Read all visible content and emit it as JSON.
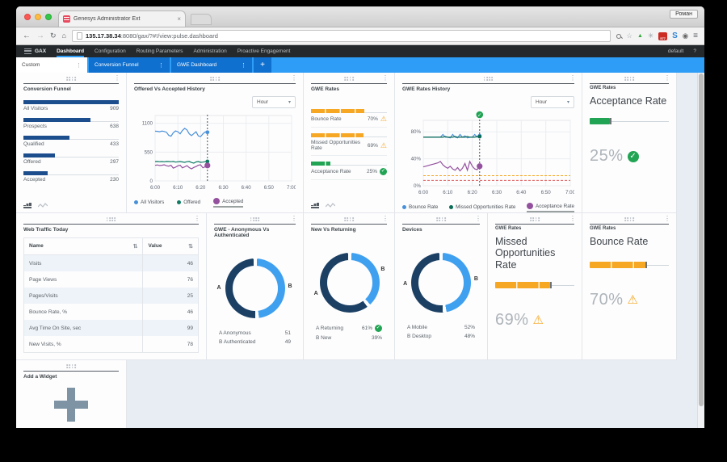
{
  "browser": {
    "tab_title": "Genesys Administrator Ext",
    "tab_close": "×",
    "user_label": "Роман",
    "url_host": "135.17.38.34",
    "url_rest": ":8080/gax/?#!/view:pulse.dashboard",
    "back": "←",
    "forward": "→",
    "reload": "↻",
    "home": "⌂",
    "star": "☆",
    "uparrow": "▲",
    "asterisk": "✳",
    "rss_badge": "577",
    "skype": "S",
    "camera": "◉",
    "menu": "≡"
  },
  "navbar": {
    "brand": "GAX",
    "items": [
      {
        "label": "Dashboard"
      },
      {
        "label": "Configuration"
      },
      {
        "label": "Routing Parameters"
      },
      {
        "label": "Administration"
      },
      {
        "label": "Proactive Engagement"
      }
    ],
    "profile": "default",
    "help": "?"
  },
  "tabbar": {
    "tabs": [
      {
        "label": "Custom",
        "menu": "⋮"
      },
      {
        "label": "Conversion Funnel",
        "menu": "⋮"
      },
      {
        "label": "GWE Dashboard",
        "menu": "⋮"
      }
    ],
    "add_label": "+"
  },
  "widgets": {
    "conversion_funnel": {
      "title": "Conversion Funnel",
      "rows": [
        {
          "label": "All Visitors",
          "value": "909",
          "pct": 100
        },
        {
          "label": "Prospects",
          "value": "638",
          "pct": 70
        },
        {
          "label": "Qualified",
          "value": "433",
          "pct": 48
        },
        {
          "label": "Offered",
          "value": "297",
          "pct": 33
        },
        {
          "label": "Accepted",
          "value": "230",
          "pct": 25
        }
      ]
    },
    "offered_history": {
      "title": "Offered Vs Accepted History",
      "dropdown": "Hour",
      "legend": [
        {
          "label": "All Visitors",
          "color": "#4a90d9"
        },
        {
          "label": "Offered",
          "color": "#0f7b63"
        },
        {
          "label": "Accepted",
          "color": "#94519e"
        }
      ],
      "chart_data": {
        "type": "line",
        "ymin": 0,
        "ymax": 1250,
        "pad_top": 6,
        "yticks": [
          {
            "v": 0,
            "label": "0"
          },
          {
            "v": 550,
            "label": "550"
          },
          {
            "v": 1100,
            "label": "1100"
          }
        ],
        "x_ticks": [
          "6:00",
          "6:10",
          "6:20",
          "6:30",
          "6:40",
          "6:50",
          "7:00"
        ],
        "cursor_minute": 23,
        "cursor_check": false,
        "thresholds": [],
        "series": [
          {
            "name": "All Visitors",
            "color": "#4a90d9",
            "dot_r": 2.4,
            "values": [
              950,
              948,
              940,
              952,
              945,
              930,
              870,
              855,
              920,
              955,
              940,
              900,
              965,
              1005,
              975,
              900,
              865,
              905,
              940,
              860,
              845,
              900,
              935,
              930
            ]
          },
          {
            "name": "Offered",
            "color": "#0f7b63",
            "dot_r": 2.4,
            "values": [
              370,
              372,
              368,
              370,
              365,
              372,
              370,
              368,
              372,
              360,
              365,
              370,
              362,
              355,
              368,
              372,
              352,
              340,
              362,
              370,
              355,
              360,
              368,
              372
            ]
          },
          {
            "name": "Accepted",
            "color": "#94519e",
            "dot_r": 3.6,
            "values": [
              298,
              305,
              295,
              300,
              308,
              290,
              282,
              300,
              245,
              262,
              288,
              300,
              250,
              268,
              292,
              255,
              232,
              258,
              275,
              300,
              308,
              252,
              270,
              296
            ]
          }
        ]
      }
    },
    "gwe_rates": {
      "title": "GWE Rates",
      "rows": [
        {
          "label": "Bounce Rate",
          "value": "70%",
          "pct": 70,
          "color": "#f6a723",
          "status": "warn"
        },
        {
          "label": "Missed Opportunities Rate",
          "value": "69%",
          "pct": 69,
          "color": "#f6a723",
          "status": "warn"
        },
        {
          "label": "Acceptance Rate",
          "value": "25%",
          "pct": 25,
          "color": "#21a453",
          "status": "ok"
        }
      ]
    },
    "gwe_rates_history": {
      "title": "GWE Rates History",
      "dropdown": "Hour",
      "legend": [
        {
          "label": "Bounce Rate",
          "color": "#4a90d9"
        },
        {
          "label": "Missed Opportunities Rate",
          "color": "#0b6b55"
        },
        {
          "label": "Acceptance Rate",
          "color": "#94519e"
        }
      ],
      "chart_data": {
        "type": "line",
        "ymin": 0,
        "ymax": 97,
        "pad_top": 12,
        "yticks": [
          {
            "v": 0,
            "label": "0%"
          },
          {
            "v": 40,
            "label": "40%"
          },
          {
            "v": 80,
            "label": "80%"
          }
        ],
        "x_ticks": [
          "6:00",
          "6:10",
          "6:20",
          "6:30",
          "6:40",
          "6:50",
          "7:00"
        ],
        "cursor_minute": 23,
        "cursor_check": true,
        "thresholds": [
          {
            "v": 15,
            "color": "#f6a723"
          },
          {
            "v": 8,
            "color": "#e05c5c"
          }
        ],
        "series": [
          {
            "name": "Bounce Rate",
            "color": "#4a90d9",
            "dot_r": 2.4,
            "values": [
              72,
              72,
              72,
              72,
              72,
              72,
              72,
              72,
              76,
              72,
              72,
              71,
              76,
              72,
              71,
              76,
              72,
              74,
              71,
              72,
              72,
              76,
              72,
              74
            ]
          },
          {
            "name": "Missed Opportunities Rate",
            "color": "#0b6b55",
            "dot_r": 2.4,
            "values": [
              72,
              72,
              72,
              72,
              72,
              72,
              72,
              72,
              72,
              73,
              72,
              72,
              72,
              73,
              72,
              72,
              72,
              72,
              73,
              72,
              72,
              72,
              73,
              73
            ]
          },
          {
            "name": "Acceptance Rate",
            "color": "#94519e",
            "dot_r": 3.6,
            "values": [
              28,
              29,
              30,
              31,
              32,
              33,
              34,
              36,
              31,
              28,
              26,
              29,
              25,
              23,
              27,
              22,
              26,
              33,
              23,
              36,
              29,
              25,
              24,
              29
            ]
          }
        ]
      }
    },
    "acceptance_kpi": {
      "category": "GWE Rates",
      "title": "Acceptance Rate",
      "value": "25%",
      "pct": 25,
      "color": "#21a453",
      "status": "ok"
    },
    "web_traffic": {
      "title": "Web Traffic Today",
      "columns": [
        "Name",
        "Value"
      ],
      "sort_icon": "⇅",
      "rows": [
        [
          "Visits",
          "46"
        ],
        [
          "Page Views",
          "76"
        ],
        [
          "Pages/Visits",
          "25"
        ],
        [
          "Bounce Rate, %",
          "46"
        ],
        [
          "Avg Time On Site, sec",
          "99"
        ],
        [
          "New Visits, %",
          "78"
        ]
      ]
    },
    "donut_auth": {
      "title": "GWE - Anonymous Vs Authenticated",
      "chart_data": {
        "type": "pie",
        "a_label": "A",
        "b_label": "B",
        "a_pct": 51,
        "b_pct": 49,
        "colors": {
          "a": "#1c4064",
          "b": "#3fa0f0"
        }
      },
      "legend": [
        {
          "label": "A Anonymous",
          "value": "51"
        },
        {
          "label": "B Authenticated",
          "value": "49"
        }
      ]
    },
    "donut_returning": {
      "title": "New Vs Returning",
      "chart_data": {
        "type": "pie",
        "a_label": "A",
        "b_label": "B",
        "a_pct": 61,
        "b_pct": 39,
        "colors": {
          "a": "#1c4064",
          "b": "#3fa0f0"
        }
      },
      "legend": [
        {
          "label": "A Returning",
          "value": "61%",
          "check": true
        },
        {
          "label": "B New",
          "value": "39%"
        }
      ]
    },
    "donut_devices": {
      "title": "Devices",
      "chart_data": {
        "type": "pie",
        "a_label": "A",
        "b_label": "B",
        "a_pct": 52,
        "b_pct": 48,
        "colors": {
          "a": "#1c4064",
          "b": "#3fa0f0"
        }
      },
      "legend": [
        {
          "label": "A Mobile",
          "value": "52%"
        },
        {
          "label": "B Desktop",
          "value": "48%"
        }
      ]
    },
    "missed_kpi": {
      "category": "GWE Rates",
      "title": "Missed Opportunities Rate",
      "value": "69%",
      "pct": 69,
      "color": "#f6a723",
      "status": "warn"
    },
    "bounce_kpi": {
      "category": "GWE Rates",
      "title": "Bounce Rate",
      "value": "70%",
      "pct": 70,
      "color": "#f6a723",
      "status": "warn"
    },
    "add_widget": {
      "title": "Add a Widget"
    }
  }
}
